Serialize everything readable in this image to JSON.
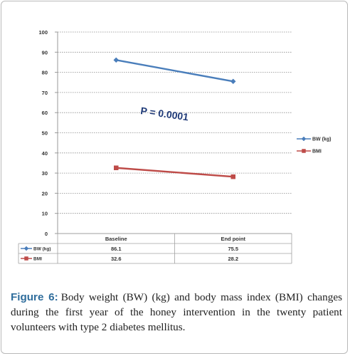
{
  "chart_data": {
    "type": "line",
    "categories": [
      "Baseline",
      "End point"
    ],
    "series": [
      {
        "name": "BW (kg)",
        "values": [
          86.1,
          75.5
        ],
        "color": "#4a7ebb",
        "marker": "diamond"
      },
      {
        "name": "BMI",
        "values": [
          32.6,
          28.2
        ],
        "color": "#be4b48",
        "marker": "square"
      }
    ],
    "yticks": [
      0,
      10,
      20,
      30,
      40,
      50,
      60,
      70,
      80,
      90,
      100
    ],
    "ylim": [
      0,
      100
    ],
    "grid": true,
    "legend_position": "right",
    "annotation": "P = 0.0001",
    "data_table_values": [
      [
        "86.1",
        "75.5"
      ],
      [
        "32.6",
        "28.2"
      ]
    ]
  },
  "caption": {
    "label": "Figure 6:",
    "text": "Body weight (BW) (kg) and body mass index (BMI) changes during the first year of the honey intervention in the twenty patient volunteers with type 2 diabetes mellitus."
  }
}
